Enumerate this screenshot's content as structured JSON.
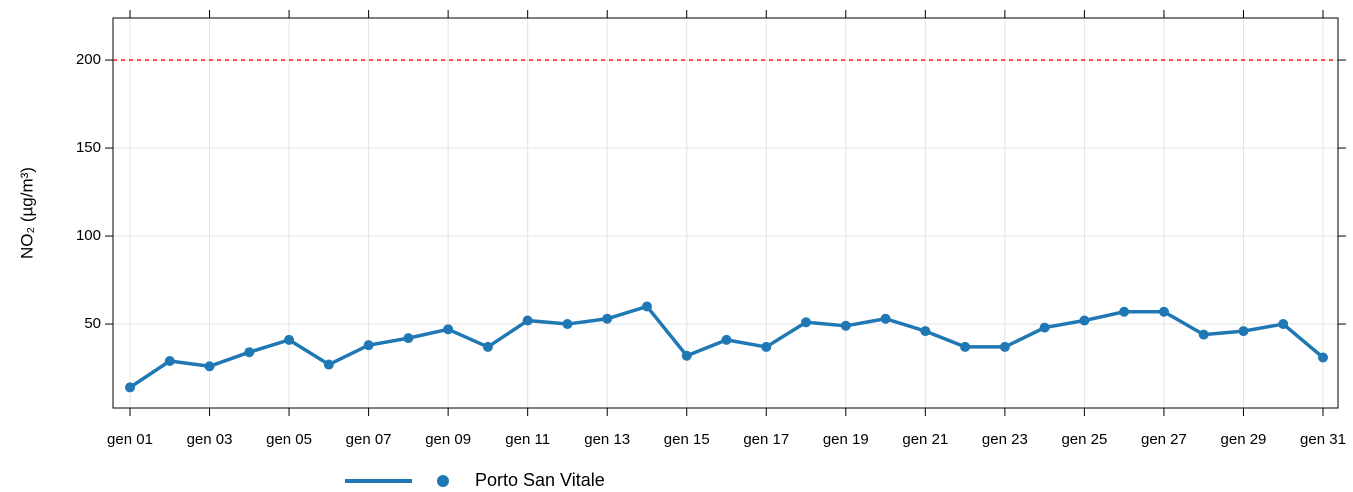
{
  "chart_data": {
    "type": "line",
    "y_label": "NO₂ (µg/m³)",
    "categories": [
      "gen 01",
      null,
      "gen 03",
      null,
      "gen 05",
      null,
      "gen 07",
      null,
      "gen 09",
      null,
      "gen 11",
      null,
      "gen 13",
      null,
      "gen 15",
      null,
      "gen 17",
      null,
      "gen 19",
      null,
      "gen 21",
      null,
      "gen 23",
      null,
      "gen 25",
      null,
      "gen 27",
      null,
      "gen 29",
      null,
      "gen 31"
    ],
    "series": [
      {
        "name": "Porto San Vitale",
        "color": "#1f78b4",
        "values": [
          14,
          29,
          26,
          34,
          41,
          27,
          38,
          42,
          47,
          37,
          52,
          50,
          53,
          60,
          32,
          41,
          37,
          51,
          49,
          53,
          46,
          37,
          37,
          48,
          52,
          57,
          57,
          44,
          46,
          50,
          31
        ]
      }
    ],
    "ylim": [
      2.3,
      223.9
    ],
    "yticks": [
      50,
      100,
      150,
      200
    ],
    "grid": true,
    "reference_line": {
      "value": 200,
      "color": "#ff0000"
    }
  }
}
